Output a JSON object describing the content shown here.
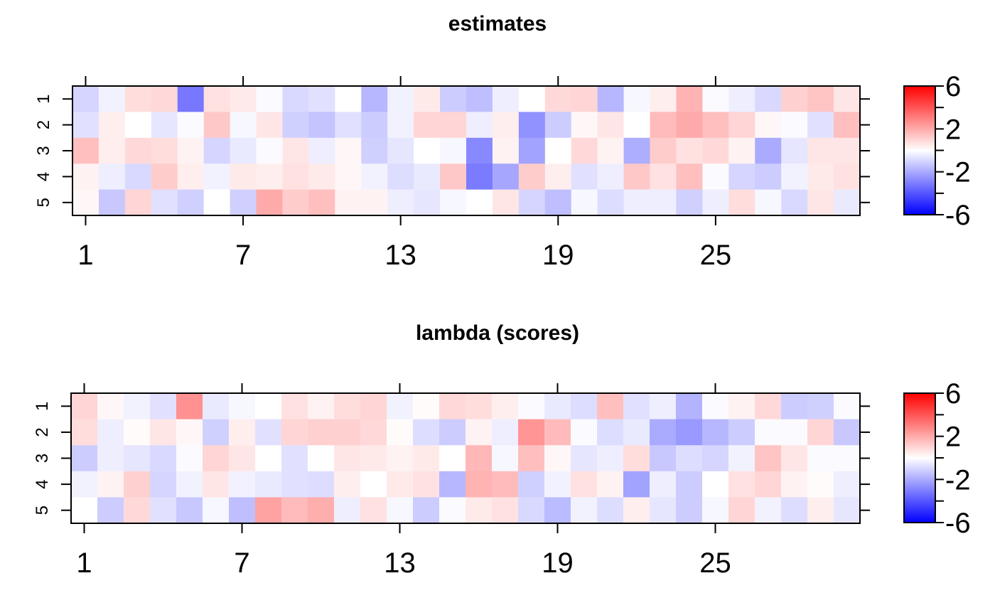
{
  "chart_data": [
    {
      "type": "heatmap",
      "title": "estimates",
      "x": [
        1,
        2,
        3,
        4,
        5,
        6,
        7,
        8,
        9,
        10,
        11,
        12,
        13,
        14,
        15,
        16,
        17,
        18,
        19,
        20,
        21,
        22,
        23,
        24,
        25,
        26,
        27,
        28,
        29,
        30
      ],
      "y": [
        1,
        2,
        3,
        4,
        5
      ],
      "xticks": [
        1,
        7,
        13,
        19,
        25
      ],
      "yticks": [
        1,
        2,
        3,
        4,
        5
      ],
      "zlim": [
        -6,
        6
      ],
      "colorbar_ticks": [
        6,
        2,
        -2,
        -6
      ],
      "colors": {
        "low": "#0000ff",
        "mid": "#ffffff",
        "high": "#ff0000"
      },
      "values": [
        [
          -1.0,
          -0.3,
          0.8,
          0.9,
          -3.2,
          0.7,
          0.5,
          -0.1,
          -0.9,
          -0.7,
          0.0,
          -1.7,
          -0.3,
          0.5,
          -1.2,
          -1.5,
          -0.4,
          0.0,
          0.9,
          1.0,
          -1.7,
          -0.2,
          0.4,
          1.8,
          -0.1,
          -0.4,
          -0.9,
          1.1,
          1.4,
          0.6
        ],
        [
          -0.7,
          0.4,
          0.0,
          -0.6,
          -0.1,
          1.3,
          -0.2,
          0.6,
          -1.1,
          -1.4,
          -0.7,
          -1.2,
          -0.3,
          1.0,
          1.0,
          -0.4,
          0.4,
          -2.6,
          -1.2,
          0.2,
          0.6,
          0.0,
          1.6,
          2.0,
          1.5,
          1.0,
          0.2,
          -0.1,
          -0.7,
          1.5
        ],
        [
          1.5,
          0.4,
          0.9,
          0.8,
          0.3,
          -1.0,
          -0.5,
          -0.1,
          0.6,
          -0.4,
          0.2,
          -1.1,
          -0.6,
          0.0,
          -0.2,
          -2.8,
          0.3,
          -2.2,
          0.0,
          0.9,
          0.3,
          -1.9,
          1.2,
          0.7,
          0.9,
          0.3,
          -2.0,
          -0.6,
          0.6,
          0.6
        ],
        [
          0.3,
          -0.4,
          -0.9,
          1.2,
          0.4,
          -0.3,
          0.5,
          0.4,
          0.7,
          0.5,
          0.2,
          -0.3,
          -0.8,
          -0.5,
          1.3,
          -3.1,
          -2.1,
          1.2,
          0.4,
          -0.7,
          -0.4,
          1.3,
          0.7,
          1.5,
          -0.1,
          -1.0,
          -1.2,
          -0.3,
          0.5,
          0.7
        ],
        [
          0.2,
          -1.3,
          1.0,
          -0.7,
          -1.1,
          0.0,
          -1.1,
          2.0,
          1.2,
          1.5,
          0.3,
          0.3,
          -0.4,
          -0.6,
          -0.2,
          0.0,
          0.6,
          -1.0,
          -1.5,
          -0.2,
          -0.8,
          -0.4,
          -0.4,
          -1.1,
          -0.4,
          0.8,
          -0.2,
          -0.9,
          0.6,
          -0.5
        ]
      ]
    },
    {
      "type": "heatmap",
      "title": "lambda (scores)",
      "x": [
        1,
        2,
        3,
        4,
        5,
        6,
        7,
        8,
        9,
        10,
        11,
        12,
        13,
        14,
        15,
        16,
        17,
        18,
        19,
        20,
        21,
        22,
        23,
        24,
        25,
        26,
        27,
        28,
        29,
        30
      ],
      "y": [
        1,
        2,
        3,
        4,
        5
      ],
      "xticks": [
        1,
        7,
        13,
        19,
        25
      ],
      "yticks": [
        1,
        2,
        3,
        4,
        5
      ],
      "zlim": [
        -6,
        6
      ],
      "colorbar_ticks": [
        6,
        2,
        -2,
        -6
      ],
      "colors": {
        "low": "#0000ff",
        "mid": "#ffffff",
        "high": "#ff0000"
      },
      "values": [
        [
          1.0,
          0.2,
          -0.3,
          -0.7,
          2.6,
          -0.5,
          -0.2,
          0.0,
          0.7,
          0.3,
          0.8,
          1.0,
          -0.3,
          0.1,
          0.9,
          0.8,
          0.4,
          -0.1,
          -0.5,
          -0.8,
          1.5,
          -0.7,
          -0.4,
          -1.8,
          -0.1,
          0.3,
          0.9,
          -1.2,
          -1.1,
          -0.1
        ],
        [
          0.8,
          -0.4,
          0.1,
          0.6,
          0.2,
          -1.1,
          0.4,
          -0.7,
          1.0,
          1.1,
          1.1,
          0.9,
          0.1,
          -0.8,
          -1.2,
          0.3,
          -0.4,
          2.5,
          1.6,
          -0.1,
          -0.8,
          -0.5,
          -2.0,
          -2.4,
          -1.7,
          -1.2,
          -0.1,
          -0.1,
          1.0,
          -1.3
        ],
        [
          -1.2,
          -0.4,
          -0.6,
          -0.9,
          -0.1,
          1.0,
          0.6,
          0.0,
          -0.7,
          0.0,
          0.6,
          0.5,
          0.3,
          0.5,
          0.0,
          1.7,
          -0.2,
          1.5,
          0.2,
          -0.6,
          -0.4,
          0.8,
          -1.3,
          -0.8,
          -1.0,
          -0.3,
          1.4,
          0.6,
          -0.1,
          -0.1
        ],
        [
          -0.3,
          0.3,
          1.1,
          -1.0,
          -0.3,
          0.6,
          -0.3,
          -0.5,
          -0.7,
          -0.8,
          0.4,
          0.0,
          0.5,
          0.7,
          -1.7,
          1.8,
          1.6,
          -1.1,
          -0.3,
          0.7,
          0.3,
          -2.2,
          -0.4,
          -1.2,
          0.0,
          0.7,
          1.0,
          0.3,
          0.1,
          -0.4
        ],
        [
          0.0,
          -1.2,
          0.9,
          -0.7,
          -1.3,
          -0.2,
          -1.5,
          2.2,
          1.6,
          1.9,
          -0.4,
          0.7,
          -0.2,
          -1.2,
          -0.1,
          0.5,
          0.7,
          -0.9,
          -1.6,
          -0.3,
          -0.8,
          0.4,
          -0.6,
          -1.2,
          -0.2,
          1.0,
          -0.3,
          -0.8,
          0.4,
          -0.6
        ]
      ]
    }
  ]
}
